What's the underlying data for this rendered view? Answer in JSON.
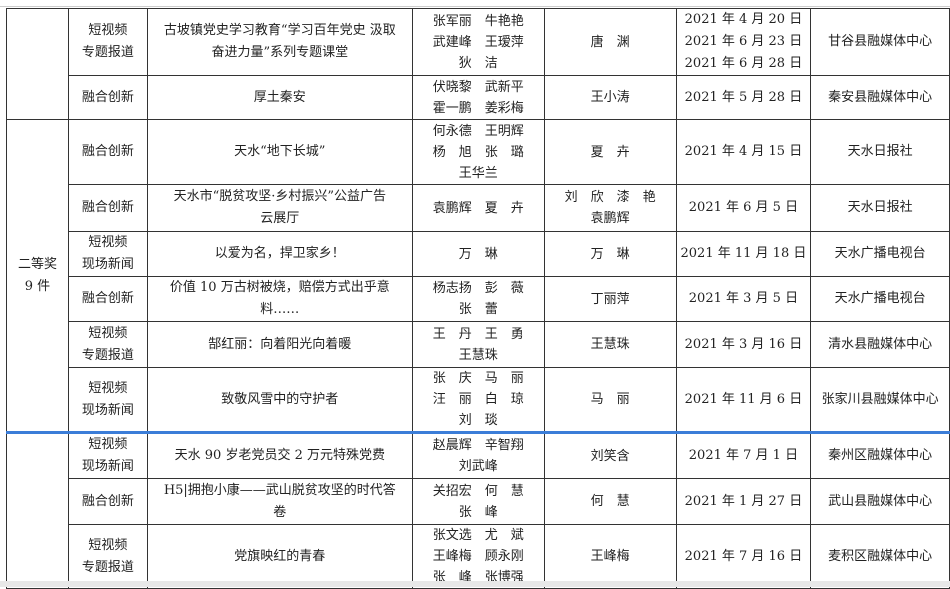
{
  "groups": [
    {
      "label": "",
      "rows": [
        0,
        1
      ]
    },
    {
      "label": [
        "二等奖",
        "9 件"
      ],
      "rows": [
        2,
        3,
        4,
        5,
        6,
        7
      ]
    },
    {
      "label": "",
      "rows": [
        8,
        9,
        10
      ]
    }
  ],
  "rows": [
    {
      "category": [
        "短视频",
        "专题报道"
      ],
      "title": [
        "古坡镇党史学习教育“学习百年党史 汲取",
        "奋进力量”系列专题课堂"
      ],
      "creators": [
        "张军丽　牛艳艳",
        "武建峰　王瑷萍",
        "狄　洁"
      ],
      "editor": [
        "唐　渊"
      ],
      "dates": [
        "2021 年 4 月 20 日",
        "2021 年 6 月 23 日",
        "2021 年 6 月 28 日"
      ],
      "unit": "甘谷县融媒体中心"
    },
    {
      "category": [
        "融合创新"
      ],
      "title": [
        "厚土秦安"
      ],
      "creators": [
        "伏晓黎　武新平",
        "霍一鹏　姜彩梅"
      ],
      "editor": [
        "王小涛"
      ],
      "dates": [
        "2021 年 5 月 28 日"
      ],
      "unit": "秦安县融媒体中心"
    },
    {
      "category": [
        "融合创新"
      ],
      "title": [
        "天水“地下长城”"
      ],
      "creators": [
        "何永德　王明辉",
        "杨　旭　张　璐",
        "王华兰"
      ],
      "editor": [
        "夏　卉"
      ],
      "dates": [
        "2021 年 4 月 15 日"
      ],
      "unit": "天水日报社"
    },
    {
      "category": [
        "融合创新"
      ],
      "title": [
        "天水市“脱贫攻坚·乡村振兴”公益广告",
        "云展厅"
      ],
      "creators": [
        "袁鹏辉　夏　卉"
      ],
      "editor": [
        "刘　欣　漆　艳",
        "袁鹏辉"
      ],
      "dates": [
        "2021 年 6 月 5 日"
      ],
      "unit": "天水日报社"
    },
    {
      "category": [
        "短视频",
        "现场新闻"
      ],
      "title": [
        "以爱为名，捍卫家乡！"
      ],
      "creators": [
        "万　琳"
      ],
      "editor": [
        "万　琳"
      ],
      "dates": [
        "2021 年 11 月 18 日"
      ],
      "unit": "天水广播电视台"
    },
    {
      "category": [
        "融合创新"
      ],
      "title": [
        "价值 10 万古树被烧，赔偿方式出乎意",
        "料……"
      ],
      "creators": [
        "杨志扬　彭　薇",
        "张　蕾"
      ],
      "editor": [
        "丁丽萍"
      ],
      "dates": [
        "2021 年 3 月 5 日"
      ],
      "unit": "天水广播电视台"
    },
    {
      "category": [
        "短视频",
        "专题报道"
      ],
      "title": [
        "郜红丽：向着阳光向着暖"
      ],
      "creators": [
        "王　丹　王　勇",
        "王慧珠"
      ],
      "editor": [
        "王慧珠"
      ],
      "dates": [
        "2021 年 3 月 16 日"
      ],
      "unit": "清水县融媒体中心"
    },
    {
      "category": [
        "短视频",
        "现场新闻"
      ],
      "title": [
        "致敬风雪中的守护者"
      ],
      "creators": [
        "张　庆　马　丽",
        "汪　丽　白　琼",
        "刘　琰"
      ],
      "editor": [
        "马　丽"
      ],
      "dates": [
        "2021 年 11 月 6 日"
      ],
      "unit": "张家川县融媒体中心"
    },
    {
      "category": [
        "短视频",
        "现场新闻"
      ],
      "title": [
        "天水 90 岁老党员交 2 万元特殊党费"
      ],
      "creators": [
        "赵晨辉　辛智翔",
        "刘武峰"
      ],
      "editor": [
        "刘笑含"
      ],
      "dates": [
        "2021 年 7 月 1 日"
      ],
      "unit": "秦州区融媒体中心"
    },
    {
      "category": [
        "融合创新"
      ],
      "title": [
        "H5|拥抱小康——武山脱贫攻坚的时代答",
        "卷"
      ],
      "creators": [
        "关招宏　何　慧",
        "张　峰"
      ],
      "editor": [
        "何　慧"
      ],
      "dates": [
        "2021 年 1 月 27 日"
      ],
      "unit": "武山县融媒体中心"
    },
    {
      "category": [
        "短视频",
        "专题报道"
      ],
      "title": [
        "党旗映红的青春"
      ],
      "creators": [
        "张文选　尤　斌",
        "王峰梅　顾永刚",
        "张　峰　张博强"
      ],
      "editor": [
        "王峰梅"
      ],
      "dates": [
        "2021 年 7 月 16 日"
      ],
      "unit": "麦积区融媒体中心"
    }
  ],
  "colors": {
    "selection_line": "#3b7dd8",
    "border": "#333333"
  }
}
